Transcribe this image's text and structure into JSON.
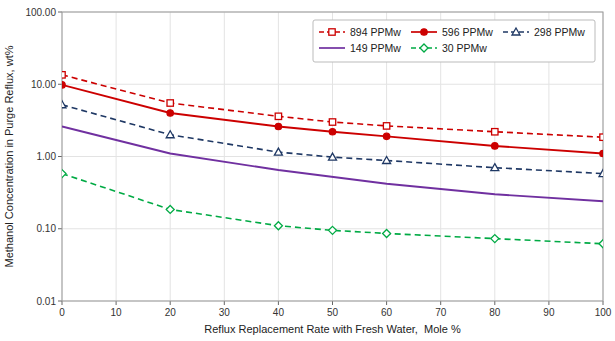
{
  "chart_data": {
    "type": "line",
    "xlabel": "Reflux Replacement Rate with Fresh Water,  Mole %",
    "ylabel": "Methanol Concentration in Purge Reflux, wt%",
    "series": [
      {
        "name": "894 PPMw",
        "color": "#CC0000",
        "line_style": "dashed",
        "marker": "open-square",
        "x": [
          0,
          20,
          40,
          50,
          60,
          80,
          100
        ],
        "values": [
          13.5,
          5.5,
          3.6,
          3.0,
          2.65,
          2.2,
          1.85
        ]
      },
      {
        "name": "596 PPMw",
        "color": "#CC0000",
        "line_style": "solid",
        "marker": "circle",
        "x": [
          0,
          20,
          40,
          50,
          60,
          80,
          100
        ],
        "values": [
          9.8,
          4.0,
          2.6,
          2.2,
          1.9,
          1.4,
          1.1
        ]
      },
      {
        "name": "298 PPMw",
        "color": "#1F3864",
        "line_style": "dashed",
        "marker": "open-triangle",
        "x": [
          0,
          20,
          40,
          50,
          60,
          80,
          100
        ],
        "values": [
          5.2,
          2.0,
          1.15,
          0.98,
          0.88,
          0.7,
          0.58
        ]
      },
      {
        "name": "149 PPMw",
        "color": "#7030A0",
        "line_style": "solid",
        "marker": "none",
        "x": [
          0,
          5,
          20,
          40,
          60,
          80,
          100
        ],
        "values": [
          2.6,
          2.1,
          1.1,
          0.65,
          0.42,
          0.3,
          0.24
        ]
      },
      {
        "name": "30 PPMw",
        "color": "#00AA44",
        "line_style": "dashed",
        "marker": "open-diamond",
        "x": [
          0,
          20,
          40,
          50,
          60,
          80,
          100
        ],
        "values": [
          0.58,
          0.185,
          0.11,
          0.095,
          0.086,
          0.073,
          0.062
        ]
      }
    ],
    "xlim": [
      0,
      100
    ],
    "ylim": [
      0.01,
      100.0
    ],
    "xticks": [
      0,
      10,
      20,
      30,
      40,
      50,
      60,
      70,
      80,
      90,
      100
    ],
    "yticks": [
      0.01,
      {
        "value": 0.1,
        "label": "0.10"
      },
      {
        "value": 1.0,
        "label": "1.00"
      },
      {
        "value": 10.0,
        "label": "10.00"
      },
      {
        "value": 100.0,
        "label": "100.00"
      }
    ],
    "log": "y",
    "grid": true,
    "legend": "upper right"
  }
}
